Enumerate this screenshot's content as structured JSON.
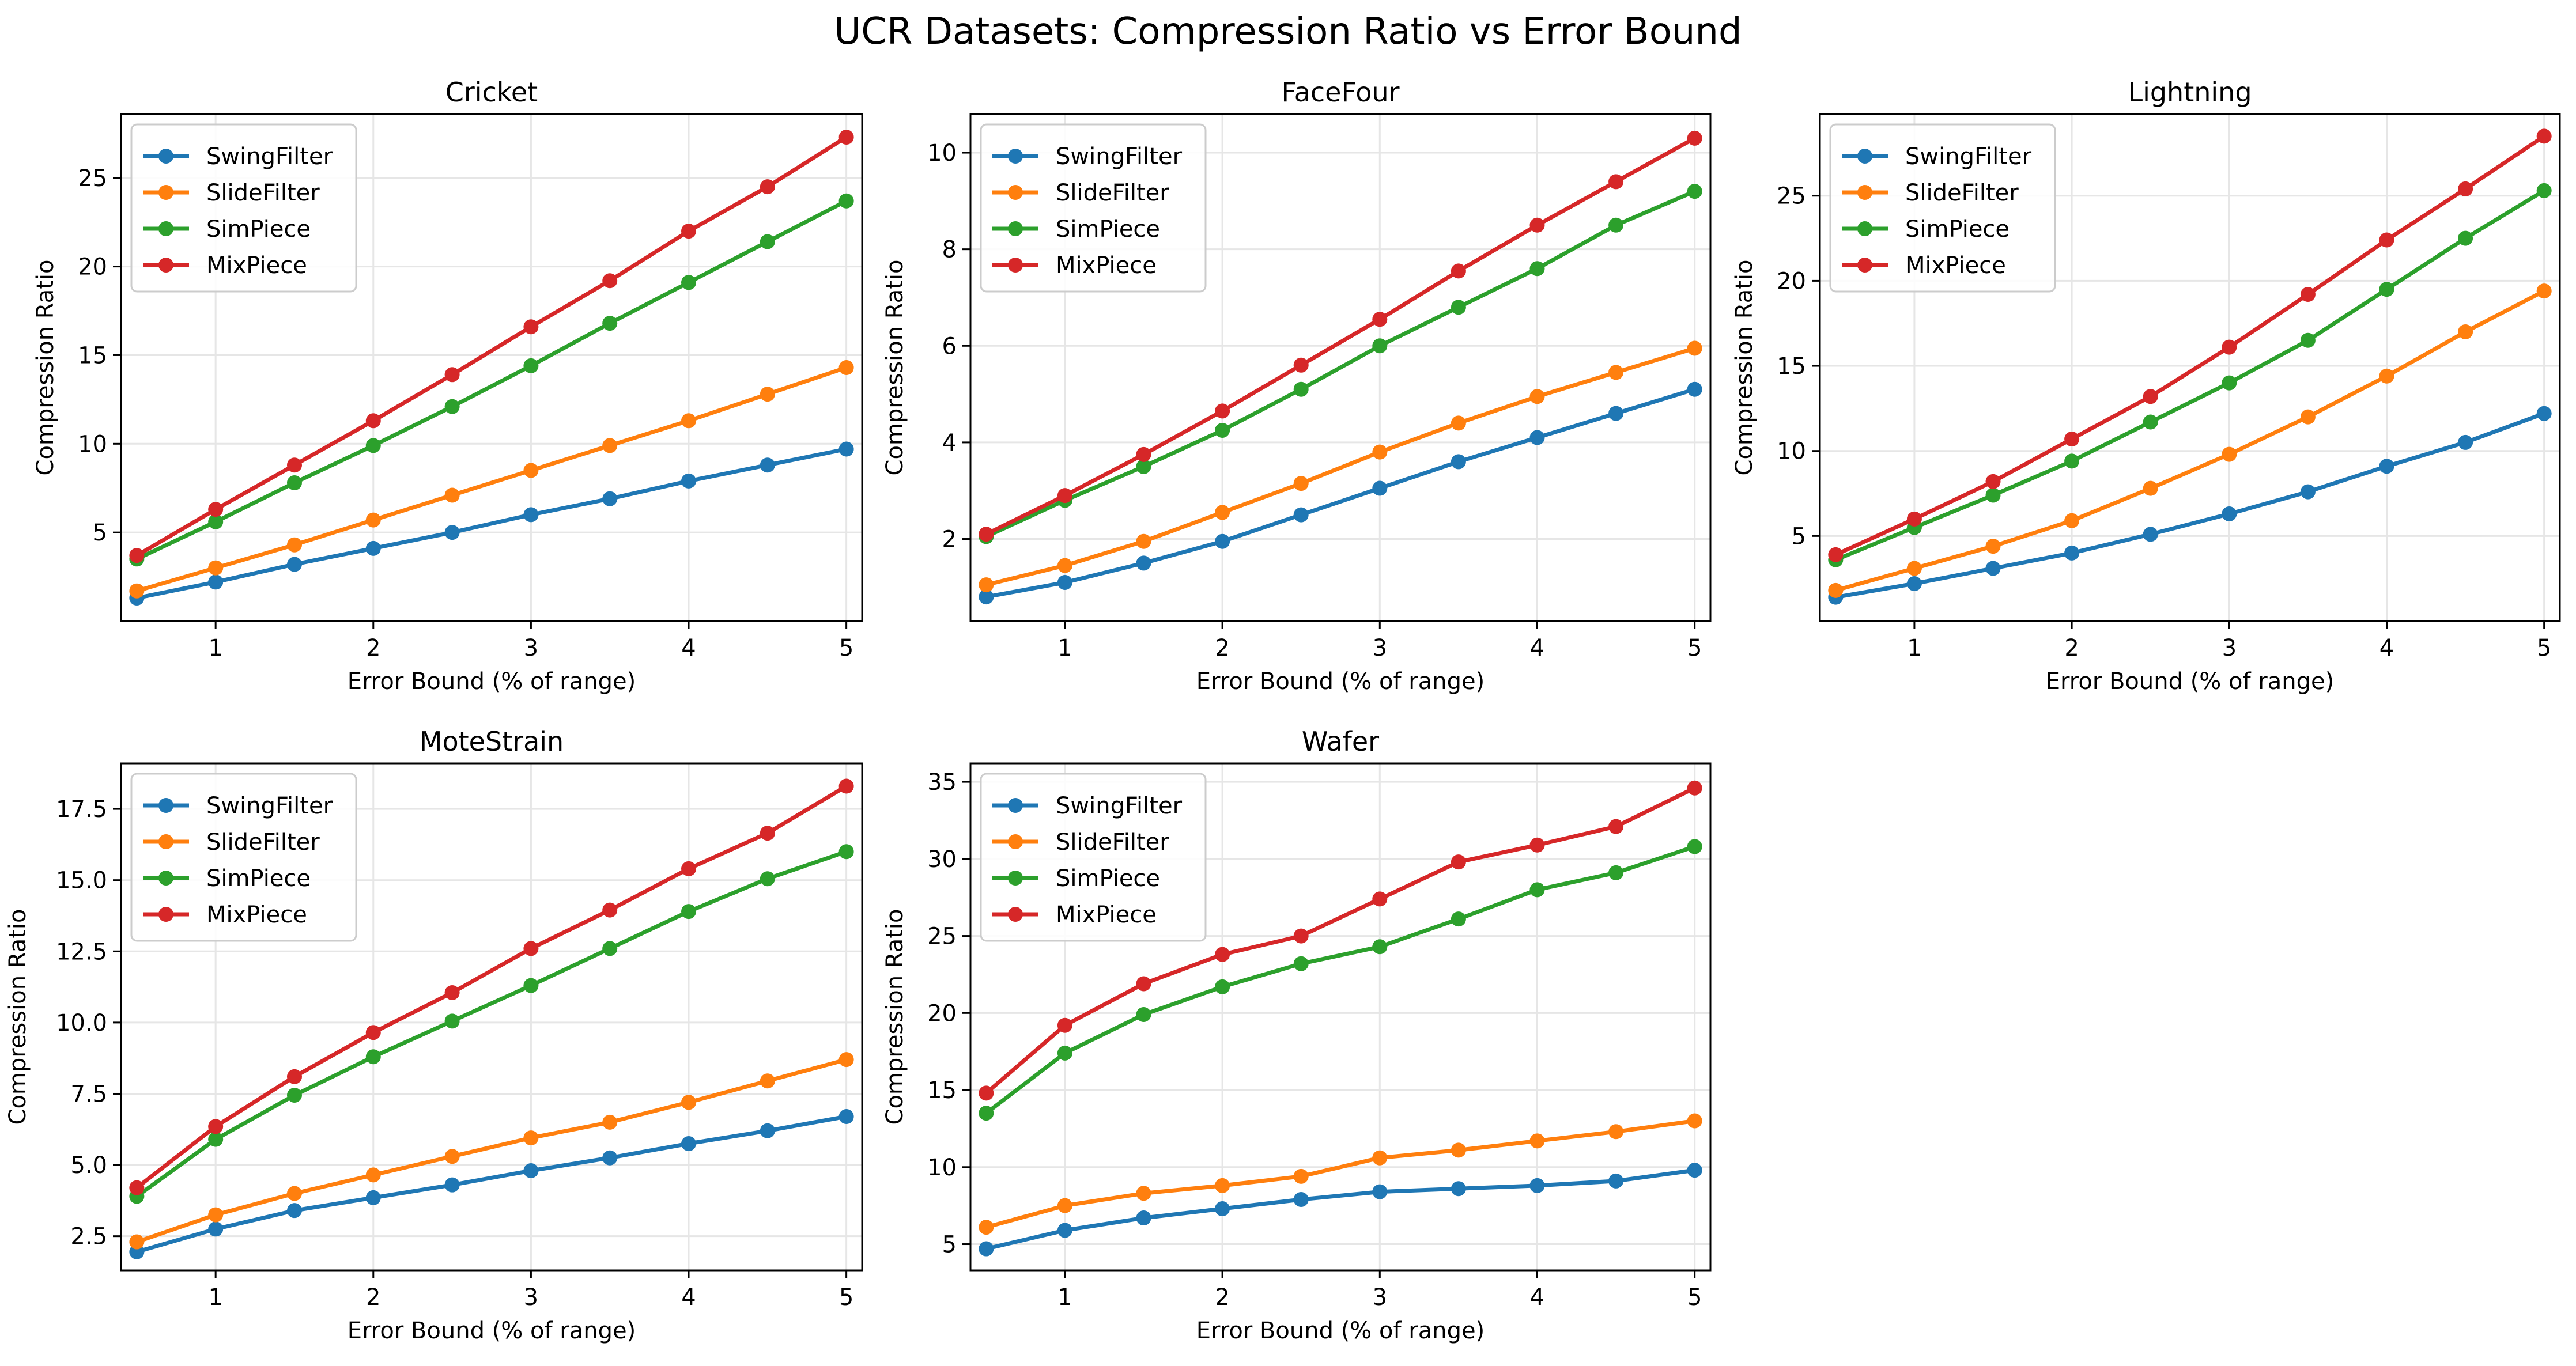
{
  "figure": {
    "title": "UCR Datasets: Compression Ratio vs Error Bound"
  },
  "style": {
    "series_colors": {
      "SwingFilter": "#1f77b4",
      "SlideFilter": "#ff7f0e",
      "SimPiece": "#2ca02c",
      "MixPiece": "#d62728"
    },
    "grid_color": "#e6e6e6",
    "axis_color": "#000000"
  },
  "chart_data": [
    {
      "type": "line",
      "title": "Cricket",
      "xlabel": "Error Bound (% of range)",
      "ylabel": "Compression Ratio",
      "x": [
        0.5,
        1,
        1.5,
        2,
        2.5,
        3,
        3.5,
        4,
        4.5,
        5
      ],
      "xlim": [
        0.4,
        5.1
      ],
      "ylim": [
        0,
        28.6
      ],
      "xticks": [
        1,
        2,
        3,
        4,
        5
      ],
      "yticks": [
        5,
        10,
        15,
        20,
        25
      ],
      "grid": true,
      "legend": "upper-left",
      "series": [
        {
          "name": "SwingFilter",
          "values": [
            1.3,
            2.2,
            3.2,
            4.1,
            5.0,
            6.0,
            6.9,
            7.9,
            8.8,
            9.7
          ]
        },
        {
          "name": "SlideFilter",
          "values": [
            1.7,
            3.0,
            4.3,
            5.7,
            7.1,
            8.5,
            9.9,
            11.3,
            12.8,
            14.3
          ]
        },
        {
          "name": "SimPiece",
          "values": [
            3.5,
            5.6,
            7.8,
            9.9,
            12.1,
            14.4,
            16.8,
            19.1,
            21.4,
            23.7
          ]
        },
        {
          "name": "MixPiece",
          "values": [
            3.7,
            6.3,
            8.8,
            11.3,
            13.9,
            16.6,
            19.2,
            22.0,
            24.5,
            27.3
          ]
        }
      ]
    },
    {
      "type": "line",
      "title": "FaceFour",
      "xlabel": "Error Bound (% of range)",
      "ylabel": "Compression Ratio",
      "x": [
        0.5,
        1,
        1.5,
        2,
        2.5,
        3,
        3.5,
        4,
        4.5,
        5
      ],
      "xlim": [
        0.4,
        5.1
      ],
      "ylim": [
        0.3,
        10.8
      ],
      "xticks": [
        1,
        2,
        3,
        4,
        5
      ],
      "yticks": [
        2,
        4,
        6,
        8,
        10
      ],
      "grid": true,
      "legend": "upper-left",
      "series": [
        {
          "name": "SwingFilter",
          "values": [
            0.8,
            1.1,
            1.5,
            1.95,
            2.5,
            3.05,
            3.6,
            4.1,
            4.6,
            5.1
          ]
        },
        {
          "name": "SlideFilter",
          "values": [
            1.05,
            1.45,
            1.95,
            2.55,
            3.15,
            3.8,
            4.4,
            4.95,
            5.45,
            5.95
          ]
        },
        {
          "name": "SimPiece",
          "values": [
            2.05,
            2.8,
            3.5,
            4.25,
            5.1,
            6.0,
            6.8,
            7.6,
            8.5,
            9.2
          ]
        },
        {
          "name": "MixPiece",
          "values": [
            2.1,
            2.9,
            3.75,
            4.65,
            5.6,
            6.55,
            7.55,
            8.5,
            9.4,
            10.3
          ]
        }
      ]
    },
    {
      "type": "line",
      "title": "Lightning",
      "xlabel": "Error Bound (% of range)",
      "ylabel": "Compression Ratio",
      "x": [
        0.5,
        1,
        1.5,
        2,
        2.5,
        3,
        3.5,
        4,
        4.5,
        5
      ],
      "xlim": [
        0.4,
        5.1
      ],
      "ylim": [
        0,
        29.8
      ],
      "xticks": [
        1,
        2,
        3,
        4,
        5
      ],
      "yticks": [
        5,
        10,
        15,
        20,
        25
      ],
      "grid": true,
      "legend": "upper-left",
      "series": [
        {
          "name": "SwingFilter",
          "values": [
            1.4,
            2.2,
            3.1,
            4.0,
            5.1,
            6.3,
            7.6,
            9.1,
            10.5,
            12.2
          ]
        },
        {
          "name": "SlideFilter",
          "values": [
            1.8,
            3.1,
            4.4,
            5.9,
            7.8,
            9.8,
            12.0,
            14.4,
            17.0,
            19.4
          ]
        },
        {
          "name": "SimPiece",
          "values": [
            3.6,
            5.5,
            7.4,
            9.4,
            11.7,
            14.0,
            16.5,
            19.5,
            22.5,
            25.3
          ]
        },
        {
          "name": "MixPiece",
          "values": [
            3.9,
            6.0,
            8.2,
            10.7,
            13.2,
            16.1,
            19.2,
            22.4,
            25.4,
            28.5
          ]
        }
      ]
    },
    {
      "type": "line",
      "title": "MoteStrain",
      "xlabel": "Error Bound (% of range)",
      "ylabel": "Compression Ratio",
      "x": [
        0.5,
        1,
        1.5,
        2,
        2.5,
        3,
        3.5,
        4,
        4.5,
        5
      ],
      "xlim": [
        0.4,
        5.1
      ],
      "ylim": [
        1.3,
        19.1
      ],
      "xticks": [
        1,
        2,
        3,
        4,
        5
      ],
      "yticks": [
        2.5,
        5.0,
        7.5,
        10.0,
        12.5,
        15.0,
        17.5
      ],
      "ytick_labels": [
        "2.5",
        "5.0",
        "7.5",
        "10.0",
        "12.5",
        "15.0",
        "17.5"
      ],
      "grid": true,
      "legend": "upper-left",
      "series": [
        {
          "name": "SwingFilter",
          "values": [
            1.95,
            2.75,
            3.4,
            3.85,
            4.3,
            4.8,
            5.25,
            5.75,
            6.2,
            6.7
          ]
        },
        {
          "name": "SlideFilter",
          "values": [
            2.3,
            3.25,
            4.0,
            4.65,
            5.3,
            5.95,
            6.5,
            7.2,
            7.95,
            8.7
          ]
        },
        {
          "name": "SimPiece",
          "values": [
            3.9,
            5.9,
            7.45,
            8.8,
            10.05,
            11.3,
            12.6,
            13.9,
            15.05,
            16.0
          ]
        },
        {
          "name": "MixPiece",
          "values": [
            4.2,
            6.35,
            8.1,
            9.65,
            11.05,
            12.6,
            13.95,
            15.4,
            16.65,
            18.3
          ]
        }
      ]
    },
    {
      "type": "line",
      "title": "Wafer",
      "xlabel": "Error Bound (% of range)",
      "ylabel": "Compression Ratio",
      "x": [
        0.5,
        1,
        1.5,
        2,
        2.5,
        3,
        3.5,
        4,
        4.5,
        5
      ],
      "xlim": [
        0.4,
        5.1
      ],
      "ylim": [
        3.3,
        36.2
      ],
      "xticks": [
        1,
        2,
        3,
        4,
        5
      ],
      "yticks": [
        5,
        10,
        15,
        20,
        25,
        30,
        35
      ],
      "grid": true,
      "legend": "upper-left",
      "series": [
        {
          "name": "SwingFilter",
          "values": [
            4.7,
            5.9,
            6.7,
            7.3,
            7.9,
            8.4,
            8.6,
            8.8,
            9.1,
            9.8
          ]
        },
        {
          "name": "SlideFilter",
          "values": [
            6.1,
            7.5,
            8.3,
            8.8,
            9.4,
            10.6,
            11.1,
            11.7,
            12.3,
            13.0
          ]
        },
        {
          "name": "SimPiece",
          "values": [
            13.5,
            17.4,
            19.9,
            21.7,
            23.2,
            24.3,
            26.1,
            28.0,
            29.1,
            30.8
          ]
        },
        {
          "name": "MixPiece",
          "values": [
            14.8,
            19.2,
            21.9,
            23.8,
            25.0,
            27.4,
            29.8,
            30.9,
            32.1,
            34.6
          ]
        }
      ]
    }
  ]
}
